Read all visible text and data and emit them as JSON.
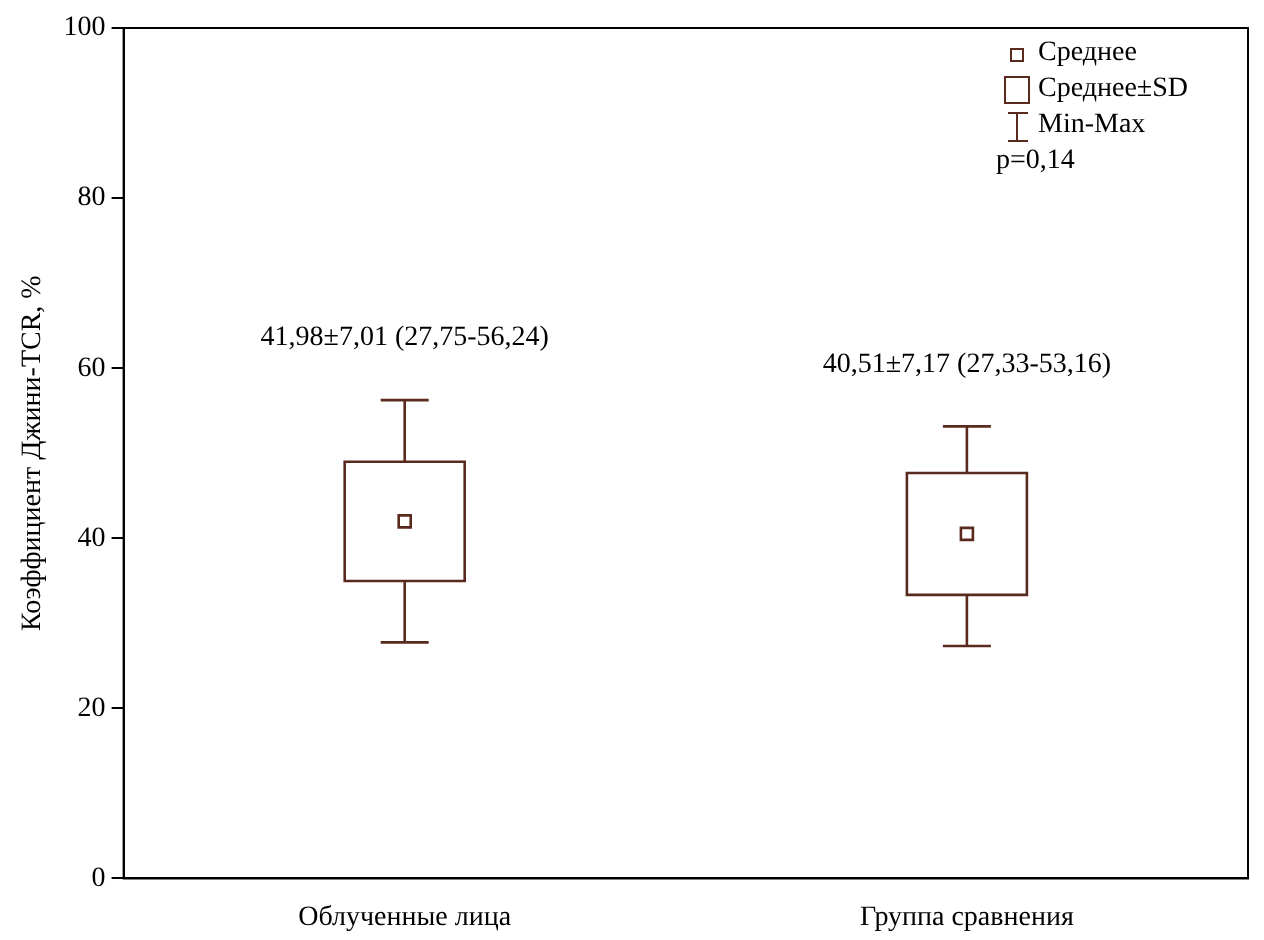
{
  "chart_data": {
    "type": "box",
    "ylabel": "Коэффициент Джини-TCR, %",
    "categories": [
      "Облученные лица",
      "Группа сравнения"
    ],
    "boxes": [
      {
        "low": 27.75,
        "q1": 34.97,
        "median": 41.98,
        "q3": 48.99,
        "high": 56.24
      },
      {
        "low": 27.33,
        "q1": 33.34,
        "median": 40.51,
        "q3": 47.68,
        "high": 53.16
      }
    ],
    "color": "#5a2a1e",
    "ylim": [
      0,
      100
    ],
    "yticks": [
      0,
      20,
      40,
      60,
      80,
      100
    ],
    "grid": false,
    "marker": "square",
    "annotations": [
      "41,98±7,01 (27,75-56,24)",
      "40,51±7,17 (27,33-53,16)",
      "Среднее",
      "Среднее±SD",
      "Min-Max",
      "p=0,14"
    ]
  }
}
